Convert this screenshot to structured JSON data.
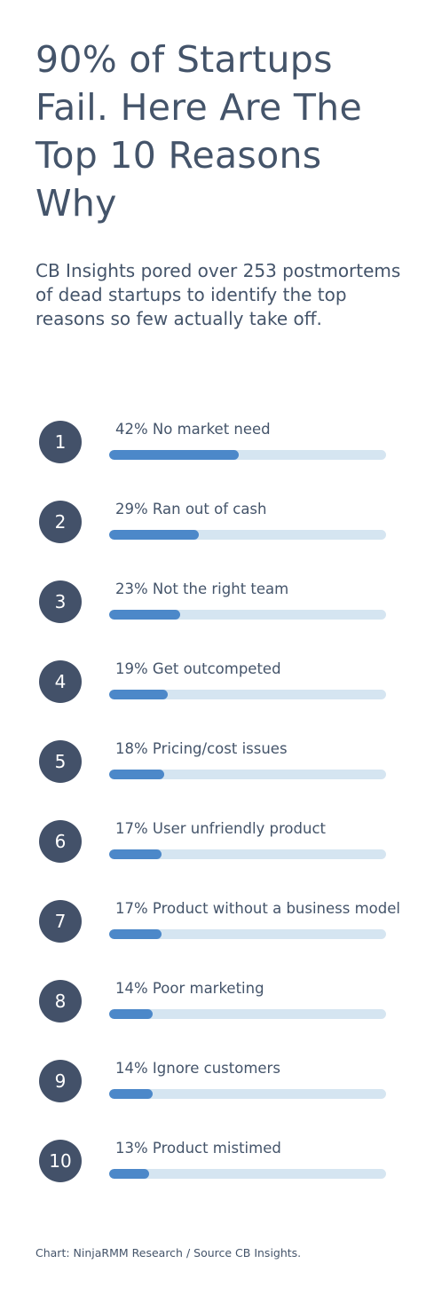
{
  "title": "90% of Startups Fail. Here Are The Top 10 Reasons Why",
  "subtitle": "CB Insights pored over 253 postmortems of dead startups to identify the top reasons so few actually take off.",
  "footer": "Chart: NinjaRMM Research / Source CB Insights.",
  "colors": {
    "badge": "#435169",
    "bar_fill": "#4c88c9",
    "bar_track": "#d5e5f1",
    "text": "#44546a"
  },
  "chart_data": {
    "type": "bar",
    "orientation": "horizontal",
    "unit": "%",
    "xlim": [
      0,
      90
    ],
    "grid": false,
    "items": [
      {
        "rank": "1",
        "label": "42% No market need",
        "value": 42
      },
      {
        "rank": "2",
        "label": "29% Ran out of cash",
        "value": 29
      },
      {
        "rank": "3",
        "label": "23% Not the right team",
        "value": 23
      },
      {
        "rank": "4",
        "label": "19% Get outcompeted",
        "value": 19
      },
      {
        "rank": "5",
        "label": "18% Pricing/cost issues",
        "value": 18
      },
      {
        "rank": "6",
        "label": "17% User unfriendly product",
        "value": 17
      },
      {
        "rank": "7",
        "label": "17% Product without a business model",
        "value": 17
      },
      {
        "rank": "8",
        "label": "14% Poor marketing",
        "value": 14
      },
      {
        "rank": "9",
        "label": "14% Ignore customers",
        "value": 14
      },
      {
        "rank": "10",
        "label": "13% Product mistimed",
        "value": 13
      }
    ]
  }
}
